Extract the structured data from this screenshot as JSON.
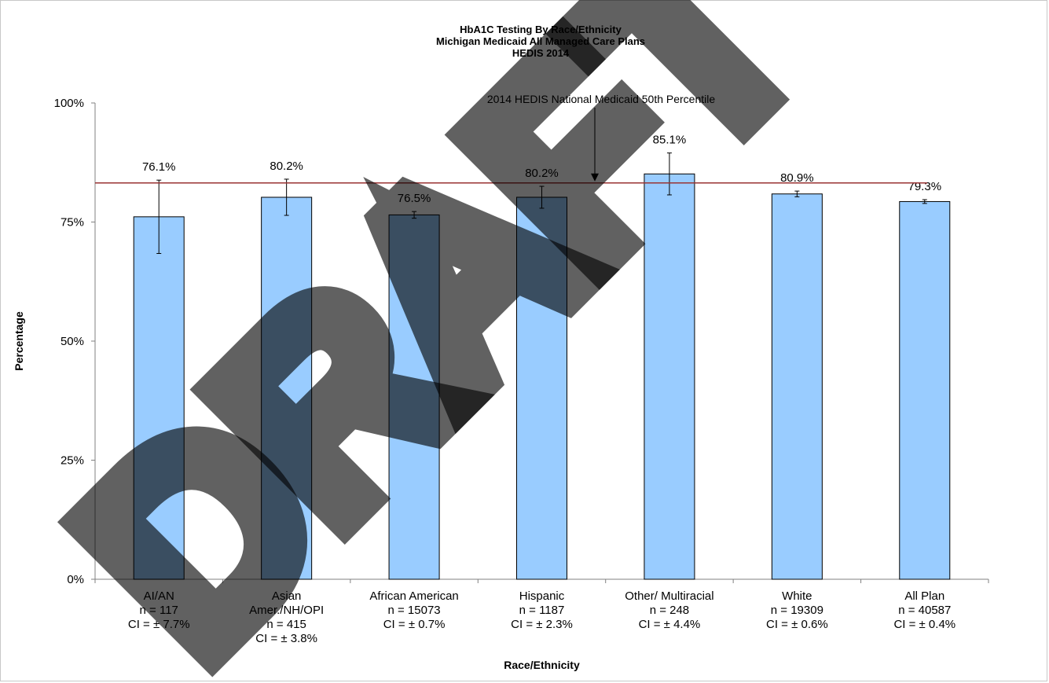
{
  "chart_data": {
    "type": "bar",
    "title": [
      "HbA1C Testing By Race/Ethnicity",
      "Michigan Medicaid All Managed Care Plans",
      "HEDIS 2014"
    ],
    "xlabel": "Race/Ethnicity",
    "ylabel": "Percentage",
    "ylim": [
      0,
      100
    ],
    "yticks": [
      "0%",
      "25%",
      "50%",
      "75%",
      "100%"
    ],
    "categories": [
      [
        "AI/AN",
        "n = 117",
        "CI = ± 7.7%"
      ],
      [
        "Asian",
        "Amer./NH/OPI",
        "n = 415",
        "CI = ± 3.8%"
      ],
      [
        "African American",
        "n = 15073",
        "CI = ± 0.7%"
      ],
      [
        "Hispanic",
        "n = 1187",
        "CI = ± 2.3%"
      ],
      [
        "Other/ Multiracial",
        "n = 248",
        "CI = ± 4.4%"
      ],
      [
        "White",
        "n = 19309",
        "CI = ±  0.6%"
      ],
      [
        "All Plan",
        "n = 40587",
        "CI = ±  0.4%"
      ]
    ],
    "values": [
      76.1,
      80.2,
      76.5,
      80.2,
      85.1,
      80.9,
      79.3
    ],
    "data_labels": [
      "76.1%",
      "80.2%",
      "76.5%",
      "80.2%",
      "85.1%",
      "80.9%",
      "79.3%"
    ],
    "error": [
      7.7,
      3.8,
      0.7,
      2.3,
      4.4,
      0.6,
      0.4
    ],
    "reference_line": {
      "label": "2014 HEDIS National Medicaid 50th Percentile",
      "value": 83.2
    },
    "grid": false,
    "legend": "none",
    "watermark": "DRAFT",
    "colors": {
      "bar": "#99ccff",
      "reference": "#993333"
    }
  }
}
